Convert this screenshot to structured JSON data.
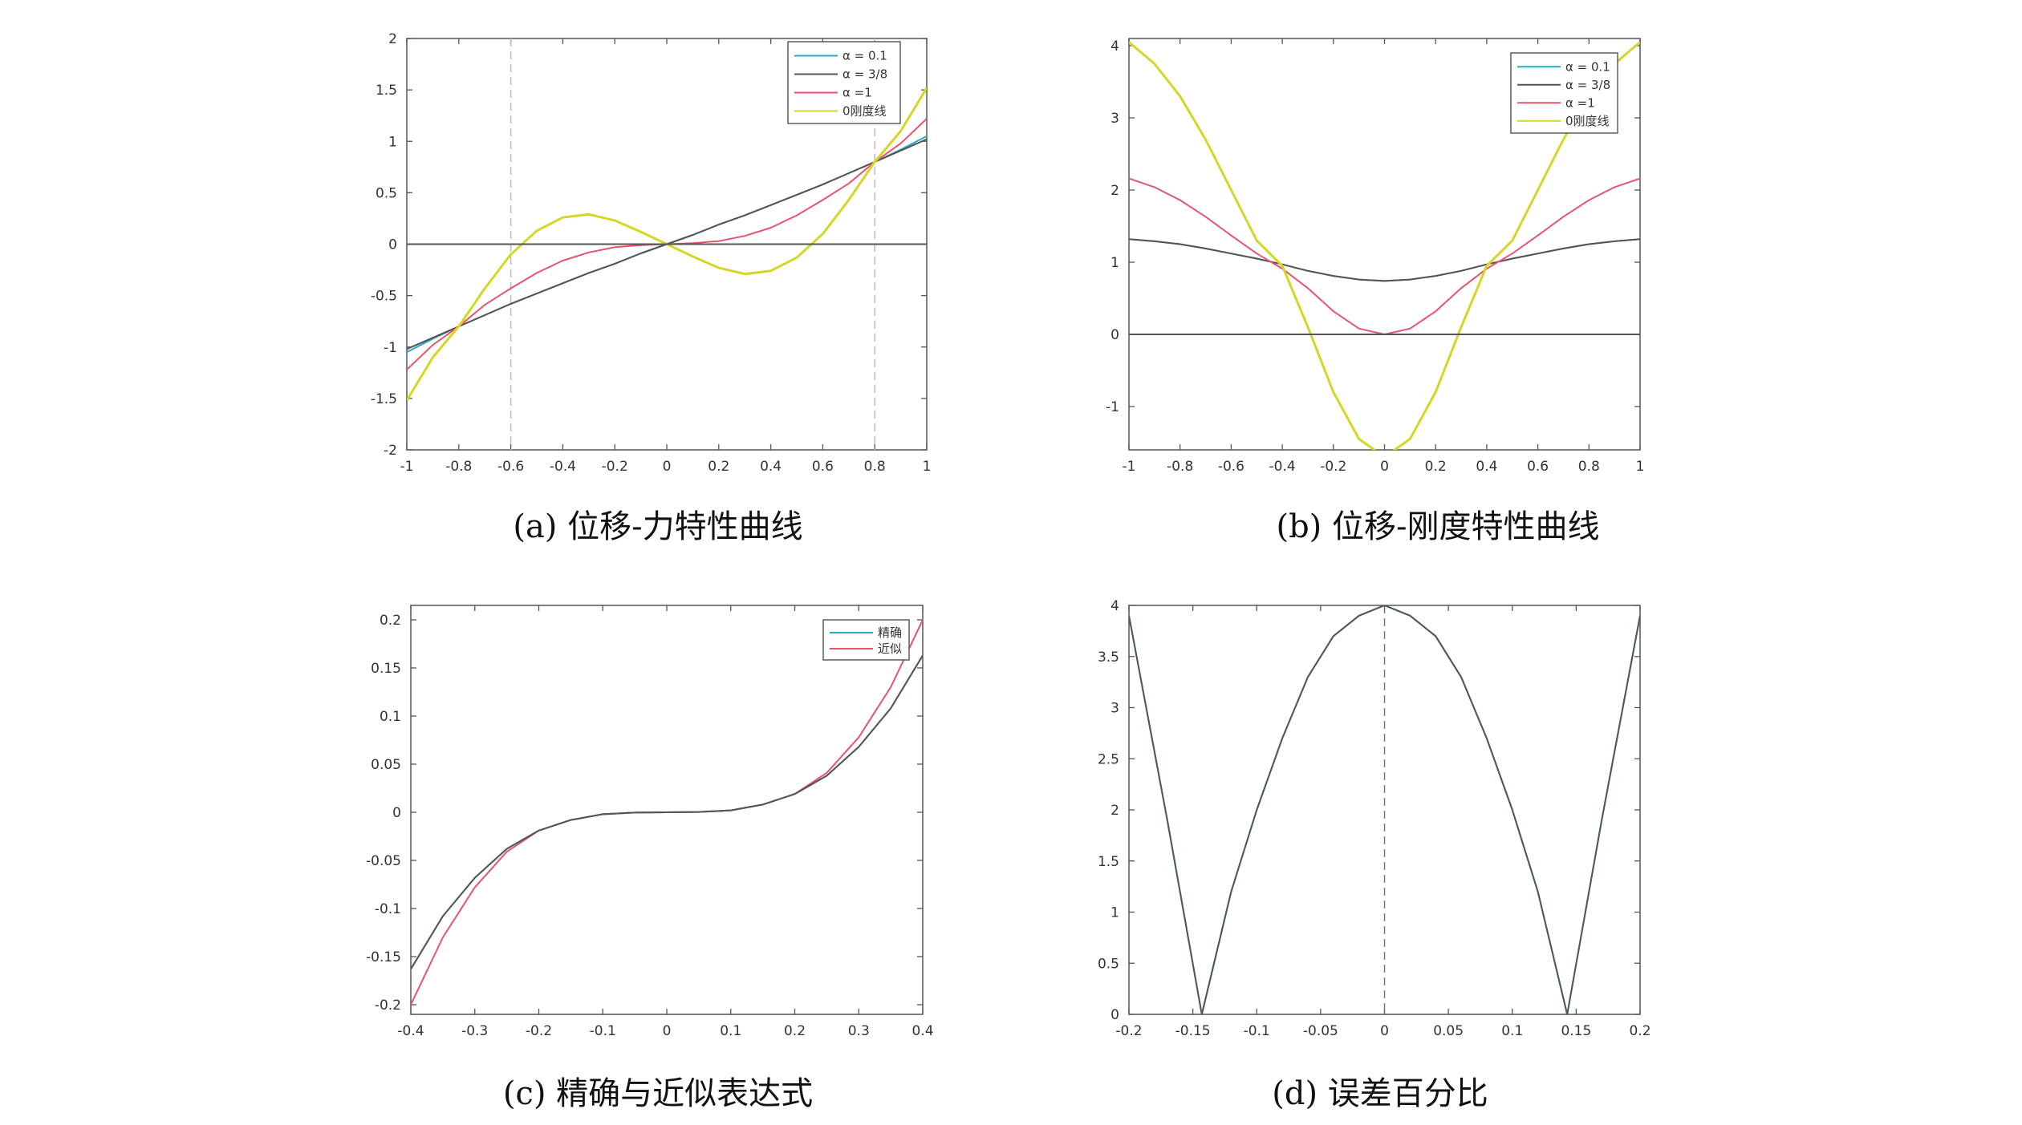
{
  "colors": {
    "alpha_0_1": "#2aa9c9",
    "alpha_3_8": "#555555",
    "alpha_1": "#e8546e",
    "zero_line": "#d6d624",
    "baseline": "#555555",
    "guide": "#bbbbbb"
  },
  "chart_data": [
    {
      "id": "a",
      "type": "line",
      "caption": "(a) 位移-力特性曲线",
      "xlabel": "",
      "ylabel": "",
      "xlim": [
        -1,
        1
      ],
      "ylim": [
        -2,
        2
      ],
      "xticks": [
        -1,
        -0.8,
        -0.6,
        -0.4,
        -0.2,
        0,
        0.2,
        0.4,
        0.6,
        0.8,
        1
      ],
      "yticks": [
        -2,
        -1.5,
        -1,
        -0.5,
        0,
        0.5,
        1,
        1.5,
        2
      ],
      "vlines": [
        -0.6,
        0.8
      ],
      "legend_position": "top-right",
      "x": [
        -1,
        -0.9,
        -0.8,
        -0.7,
        -0.6,
        -0.5,
        -0.4,
        -0.3,
        -0.2,
        -0.1,
        0,
        0.1,
        0.2,
        0.3,
        0.4,
        0.5,
        0.6,
        0.7,
        0.8,
        0.9,
        1
      ],
      "series": [
        {
          "name": "α = 0.1",
          "color_key": "alpha_0_1",
          "values": [
            -1.05,
            -0.92,
            -0.8,
            -0.69,
            -0.58,
            -0.48,
            -0.38,
            -0.28,
            -0.19,
            -0.09,
            0,
            0.09,
            0.19,
            0.28,
            0.38,
            0.48,
            0.58,
            0.69,
            0.8,
            0.92,
            1.05
          ]
        },
        {
          "name": "α = 3/8",
          "color_key": "alpha_3_8",
          "values": [
            -1.02,
            -0.91,
            -0.8,
            -0.69,
            -0.58,
            -0.48,
            -0.38,
            -0.28,
            -0.19,
            -0.09,
            0,
            0.09,
            0.19,
            0.28,
            0.38,
            0.48,
            0.58,
            0.69,
            0.8,
            0.91,
            1.02
          ]
        },
        {
          "name": "α =1",
          "color_key": "alpha_1",
          "values": [
            -1.22,
            -0.98,
            -0.8,
            -0.59,
            -0.43,
            -0.28,
            -0.16,
            -0.08,
            -0.03,
            -0.01,
            0,
            0.01,
            0.03,
            0.08,
            0.16,
            0.28,
            0.43,
            0.59,
            0.8,
            0.98,
            1.22
          ]
        },
        {
          "name": "0刚度线",
          "color_key": "zero_line",
          "values": [
            -1.52,
            -1.1,
            -0.8,
            -0.43,
            -0.1,
            0.13,
            0.26,
            0.29,
            0.23,
            0.12,
            0,
            -0.12,
            -0.23,
            -0.29,
            -0.26,
            -0.13,
            0.1,
            0.43,
            0.8,
            1.1,
            1.52
          ]
        },
        {
          "name": "",
          "color_key": "baseline",
          "values": [
            0,
            0,
            0,
            0,
            0,
            0,
            0,
            0,
            0,
            0,
            0,
            0,
            0,
            0,
            0,
            0,
            0,
            0,
            0,
            0,
            0
          ]
        }
      ]
    },
    {
      "id": "b",
      "type": "line",
      "caption": "(b) 位移-刚度特性曲线",
      "xlabel": "",
      "ylabel": "",
      "xlim": [
        -1,
        1
      ],
      "ylim": [
        -1.6,
        4.1
      ],
      "xticks": [
        -1,
        -0.8,
        -0.6,
        -0.4,
        -0.2,
        0,
        0.2,
        0.4,
        0.6,
        0.8,
        1
      ],
      "yticks": [
        -1,
        0,
        1,
        2,
        3,
        4
      ],
      "vlines": [],
      "legend_position": "top-right",
      "x": [
        -1,
        -0.9,
        -0.8,
        -0.7,
        -0.6,
        -0.5,
        -0.4,
        -0.3,
        -0.2,
        -0.1,
        0,
        0.1,
        0.2,
        0.3,
        0.4,
        0.5,
        0.6,
        0.7,
        0.8,
        0.9,
        1
      ],
      "series": [
        {
          "name": "α = 0.1",
          "color_key": "alpha_0_1",
          "values": [
            1.32,
            1.29,
            1.25,
            1.19,
            1.12,
            1.05,
            0.97,
            0.88,
            0.81,
            0.76,
            0.74,
            0.76,
            0.81,
            0.88,
            0.97,
            1.05,
            1.12,
            1.19,
            1.25,
            1.29,
            1.32
          ]
        },
        {
          "name": "α = 3/8",
          "color_key": "alpha_3_8",
          "values": [
            1.32,
            1.29,
            1.25,
            1.19,
            1.12,
            1.05,
            0.97,
            0.88,
            0.81,
            0.76,
            0.74,
            0.76,
            0.81,
            0.88,
            0.97,
            1.05,
            1.12,
            1.19,
            1.25,
            1.29,
            1.32
          ]
        },
        {
          "name": "α =1",
          "color_key": "alpha_1",
          "values": [
            2.16,
            2.04,
            1.86,
            1.63,
            1.37,
            1.12,
            0.91,
            0.64,
            0.32,
            0.08,
            0,
            0.08,
            0.32,
            0.64,
            0.91,
            1.12,
            1.37,
            1.63,
            1.86,
            2.04,
            2.16
          ]
        },
        {
          "name": "0刚度线",
          "color_key": "zero_line",
          "values": [
            4.05,
            3.75,
            3.3,
            2.7,
            2.0,
            1.3,
            0.95,
            0.1,
            -0.8,
            -1.45,
            -1.7,
            -1.45,
            -0.8,
            0.1,
            0.95,
            1.3,
            2.0,
            2.7,
            3.3,
            3.75,
            4.05
          ]
        },
        {
          "name": "",
          "color_key": "baseline",
          "values": [
            0,
            0,
            0,
            0,
            0,
            0,
            0,
            0,
            0,
            0,
            0,
            0,
            0,
            0,
            0,
            0,
            0,
            0,
            0,
            0,
            0
          ]
        }
      ]
    },
    {
      "id": "c",
      "type": "line",
      "caption": "(c) 精确与近似表达式",
      "xlabel": "",
      "ylabel": "",
      "xlim": [
        -0.4,
        0.4
      ],
      "ylim": [
        -0.21,
        0.215
      ],
      "xticks": [
        -0.4,
        -0.3,
        -0.2,
        -0.1,
        0,
        0.1,
        0.2,
        0.3,
        0.4
      ],
      "yticks": [
        -0.2,
        -0.15,
        -0.1,
        -0.05,
        0,
        0.05,
        0.1,
        0.15,
        0.2
      ],
      "vlines": [],
      "legend_position": "top-right",
      "x": [
        -0.4,
        -0.35,
        -0.3,
        -0.25,
        -0.2,
        -0.15,
        -0.1,
        -0.05,
        0,
        0.05,
        0.1,
        0.15,
        0.2,
        0.25,
        0.3,
        0.35,
        0.4
      ],
      "series": [
        {
          "name": "精确",
          "color_key": "alpha_0_1",
          "values": [
            -0.163,
            -0.108,
            -0.068,
            -0.038,
            -0.019,
            -0.008,
            -0.002,
            -0.0003,
            0,
            0.0003,
            0.002,
            0.008,
            0.019,
            0.038,
            0.068,
            0.108,
            0.163
          ]
        },
        {
          "name": "近似",
          "color_key": "alpha_1",
          "values": [
            -0.2,
            -0.13,
            -0.078,
            -0.041,
            -0.019,
            -0.008,
            -0.002,
            -0.0003,
            0,
            0.0003,
            0.002,
            0.008,
            0.019,
            0.041,
            0.078,
            0.13,
            0.2
          ]
        },
        {
          "name": "",
          "color_key": "alpha_3_8",
          "values": [
            -0.163,
            -0.108,
            -0.068,
            -0.038,
            -0.019,
            -0.008,
            -0.002,
            -0.0003,
            0,
            0.0003,
            0.002,
            0.008,
            0.019,
            0.038,
            0.068,
            0.108,
            0.163
          ]
        }
      ]
    },
    {
      "id": "d",
      "type": "line",
      "caption": "(d) 误差百分比",
      "xlabel": "",
      "ylabel": "",
      "xlim": [
        -0.2,
        0.2
      ],
      "ylim": [
        0,
        4
      ],
      "xticks": [
        -0.2,
        -0.15,
        -0.1,
        -0.05,
        0,
        0.05,
        0.1,
        0.15,
        0.2
      ],
      "yticks": [
        0,
        0.5,
        1,
        1.5,
        2,
        2.5,
        3,
        3.5,
        4
      ],
      "vlines": [
        0
      ],
      "legend_position": "none",
      "x": [
        -0.2,
        -0.17,
        -0.143,
        -0.12,
        -0.1,
        -0.08,
        -0.06,
        -0.04,
        -0.02,
        0,
        0.02,
        0.04,
        0.06,
        0.08,
        0.1,
        0.12,
        0.143,
        0.17,
        0.2
      ],
      "series": [
        {
          "name": "",
          "color_key": "alpha_0_1",
          "values": [
            3.9,
            1.9,
            0.0,
            1.2,
            2.0,
            2.7,
            3.3,
            3.7,
            3.9,
            4.0,
            3.9,
            3.7,
            3.3,
            2.7,
            2.0,
            1.2,
            0.0,
            1.9,
            3.9
          ]
        },
        {
          "name": "",
          "color_key": "alpha_3_8",
          "values": [
            3.9,
            1.9,
            0.0,
            1.2,
            2.0,
            2.7,
            3.3,
            3.7,
            3.9,
            4.0,
            3.9,
            3.7,
            3.3,
            2.7,
            2.0,
            1.2,
            0.0,
            1.9,
            3.9
          ]
        }
      ]
    }
  ]
}
